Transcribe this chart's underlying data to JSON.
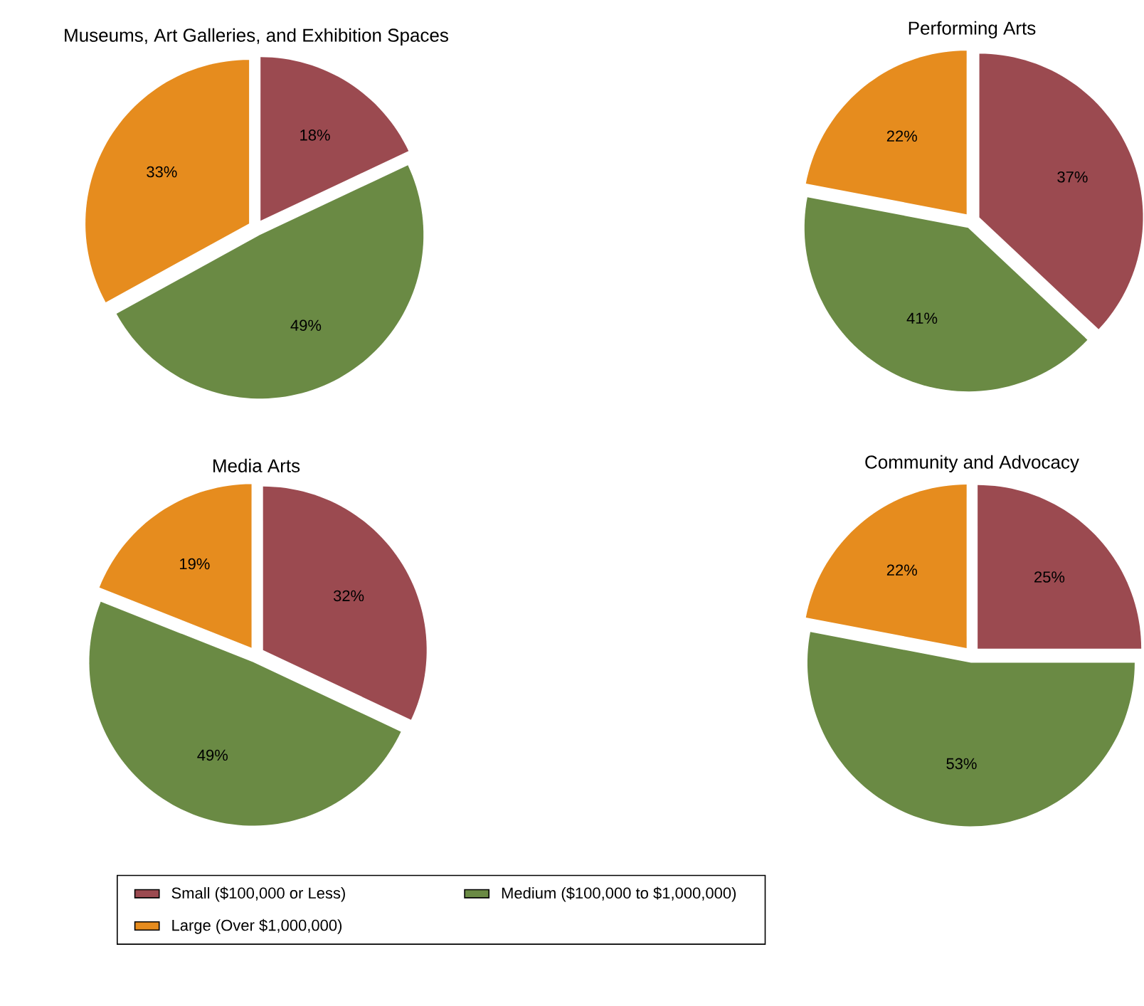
{
  "chart_data": [
    {
      "type": "pie",
      "title": "Museums, Art Galleries, and Exhibition Spaces",
      "categories": [
        "Small ($100,000 or Less)",
        "Medium ($100,000 to $1,000,000)",
        "Large (Over $1,000,000)"
      ],
      "values": [
        18,
        49,
        33
      ],
      "value_labels": [
        "18%",
        "49%",
        "33%"
      ],
      "colors": [
        "#9b4a50",
        "#6a8a44",
        "#e68c1e"
      ],
      "legend": "bottom"
    },
    {
      "type": "pie",
      "title": "Performing Arts",
      "categories": [
        null,
        null,
        null
      ],
      "values": [
        37,
        41,
        22
      ],
      "value_labels": [
        "37%",
        "41%",
        "22%"
      ],
      "colors": [
        "#9b4a50",
        "#6a8a44",
        "#e68c1e"
      ]
    },
    {
      "type": "pie",
      "title": "Media Arts",
      "categories": [
        null,
        null,
        null
      ],
      "values": [
        32,
        49,
        19
      ],
      "value_labels": [
        "32%",
        "49%",
        "19%"
      ],
      "colors": [
        "#9b4a50",
        "#6a8a44",
        "#e68c1e"
      ]
    },
    {
      "type": "pie",
      "title": "Community and Advocacy",
      "categories": [
        null,
        null,
        null
      ],
      "values": [
        25,
        53,
        22
      ],
      "value_labels": [
        "25%",
        "53%",
        "22%"
      ],
      "colors": [
        "#9b4a50",
        "#6a8a44",
        "#e68c1e"
      ]
    }
  ]
}
